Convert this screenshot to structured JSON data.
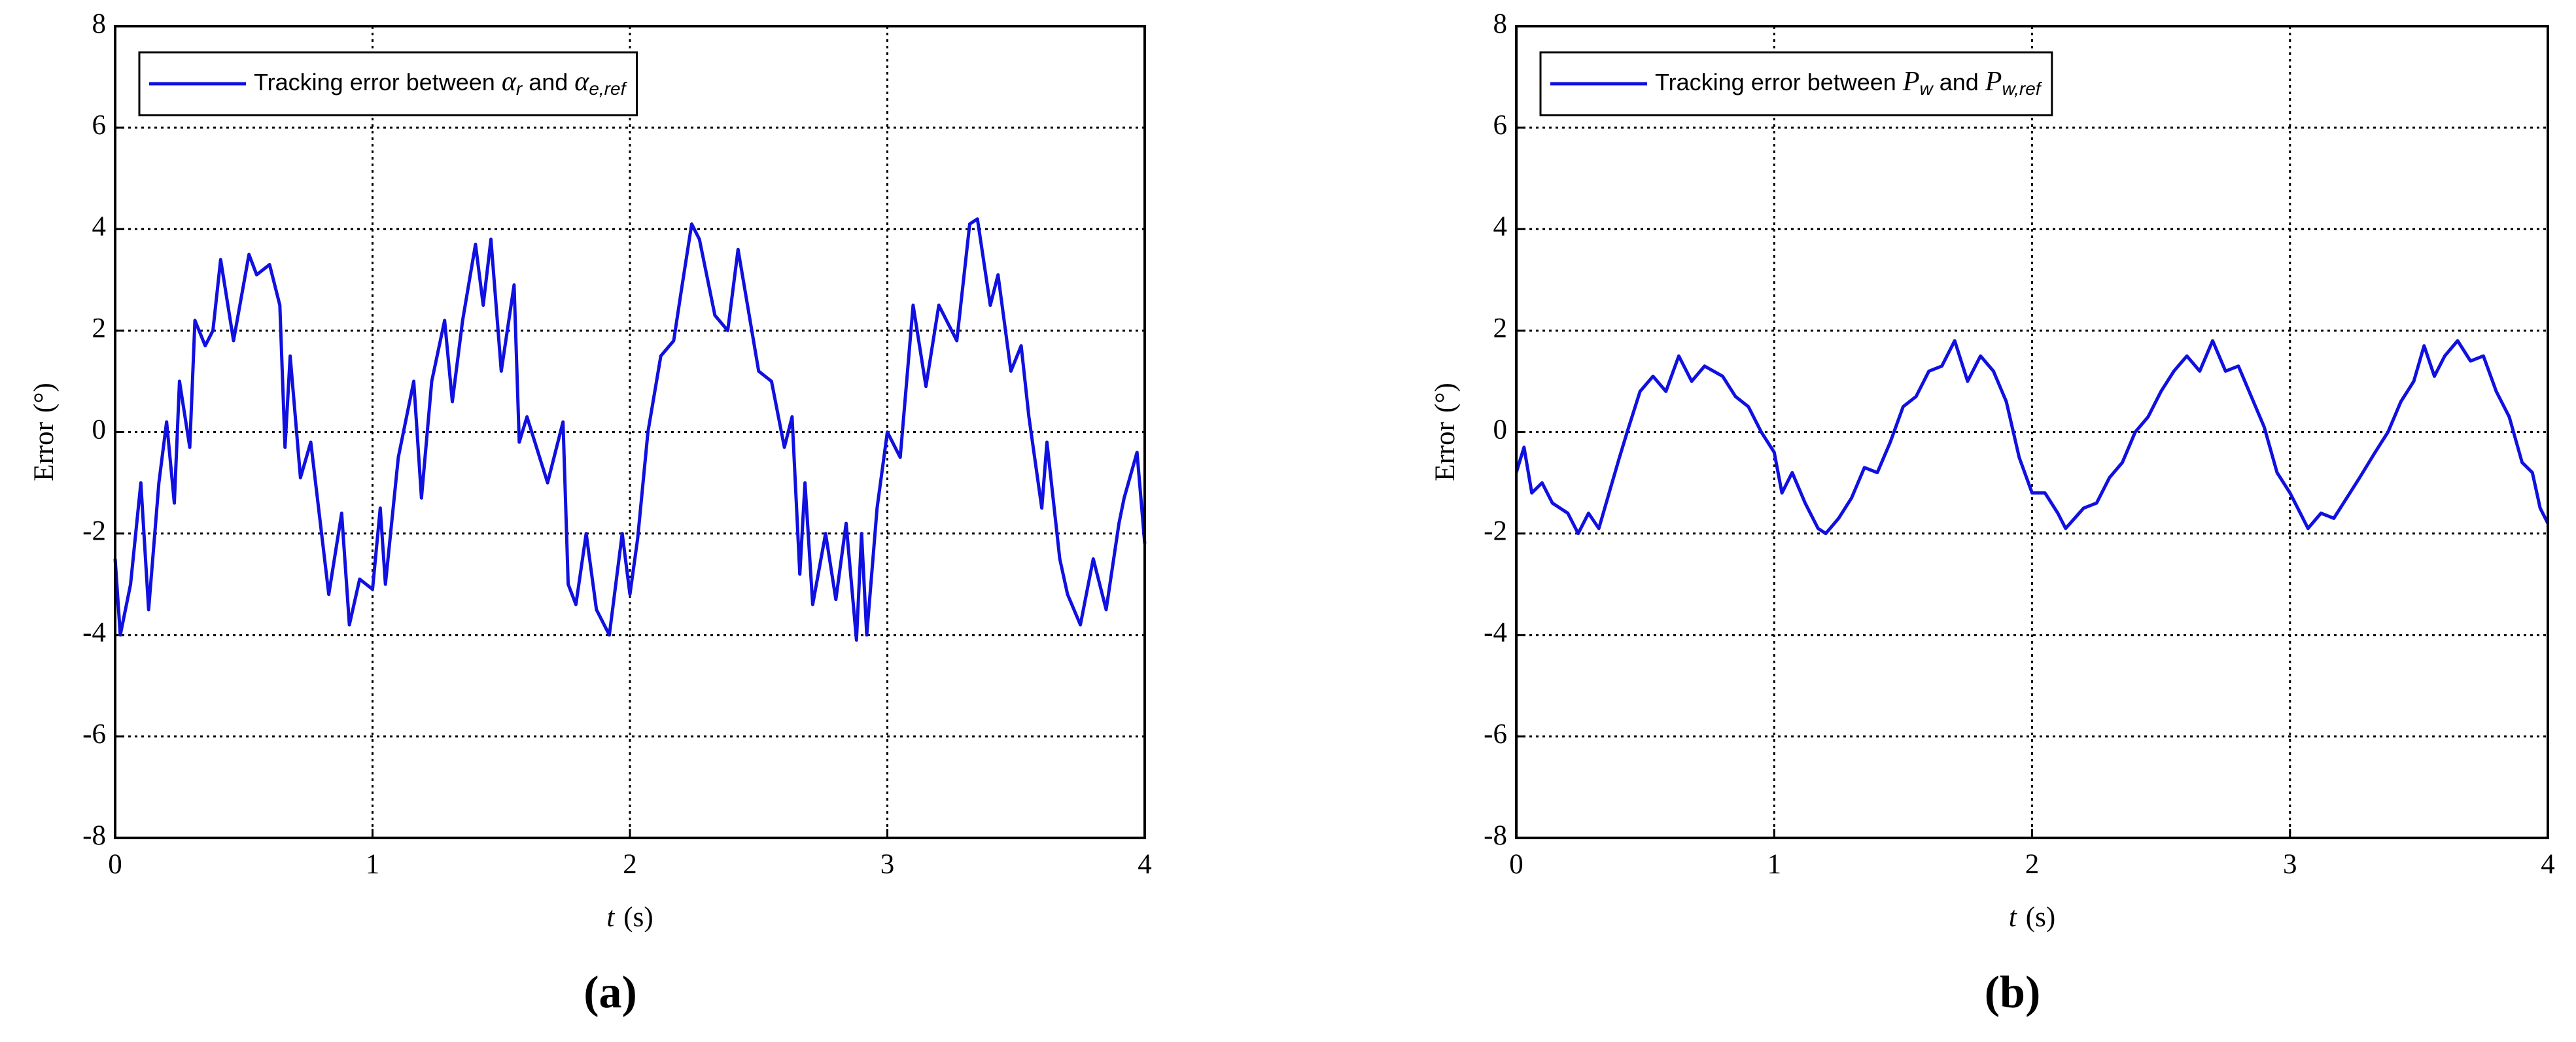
{
  "chart_data": [
    {
      "type": "line",
      "caption": "(a)",
      "ylabel": "Error",
      "ylabel_unit": "(°)",
      "xlabel": "t",
      "xlabel_unit": "(s)",
      "legend_parts": {
        "text": "Tracking error between",
        "symbol1": "α",
        "sub1": "r",
        "and": "and",
        "symbol2": "α",
        "sub2": "e,ref"
      },
      "xlim": [
        0,
        4
      ],
      "xticks": [
        0,
        1,
        2,
        3,
        4
      ],
      "ylim": [
        -8,
        8
      ],
      "yticks": [
        -8,
        -6,
        -4,
        -2,
        0,
        2,
        4,
        6,
        8
      ],
      "grid": true,
      "legend_position": "upper left",
      "series": [
        {
          "color": "#1010e0",
          "x": [
            0,
            0.02,
            0.06,
            0.1,
            0.13,
            0.17,
            0.2,
            0.23,
            0.25,
            0.29,
            0.31,
            0.35,
            0.38,
            0.41,
            0.46,
            0.52,
            0.55,
            0.6,
            0.64,
            0.66,
            0.68,
            0.72,
            0.76,
            0.83,
            0.88,
            0.91,
            0.95,
            1.0,
            1.03,
            1.05,
            1.1,
            1.16,
            1.19,
            1.23,
            1.28,
            1.31,
            1.35,
            1.4,
            1.43,
            1.46,
            1.5,
            1.55,
            1.57,
            1.6,
            1.68,
            1.74,
            1.76,
            1.79,
            1.83,
            1.87,
            1.92,
            1.97,
            2.0,
            2.03,
            2.07,
            2.12,
            2.17,
            2.2,
            2.24,
            2.27,
            2.33,
            2.38,
            2.42,
            2.5,
            2.55,
            2.6,
            2.63,
            2.66,
            2.68,
            2.71,
            2.76,
            2.8,
            2.84,
            2.88,
            2.9,
            2.92,
            2.96,
            3.0,
            3.05,
            3.1,
            3.15,
            3.2,
            3.27,
            3.32,
            3.35,
            3.4,
            3.43,
            3.48,
            3.52,
            3.55,
            3.6,
            3.62,
            3.67,
            3.7,
            3.75,
            3.8,
            3.85,
            3.9,
            3.92,
            3.97,
            4.0
          ],
          "values": [
            -2.5,
            -4,
            -3,
            -1,
            -3.5,
            -1,
            0.2,
            -1.4,
            1,
            -0.3,
            2.2,
            1.7,
            2,
            3.4,
            1.8,
            3.5,
            3.1,
            3.3,
            2.5,
            -0.3,
            1.5,
            -0.9,
            -0.2,
            -3.2,
            -1.6,
            -3.8,
            -2.9,
            -3.1,
            -1.5,
            -3,
            -0.5,
            1,
            -1.3,
            1,
            2.2,
            0.6,
            2.2,
            3.7,
            2.5,
            3.8,
            1.2,
            2.9,
            -0.2,
            0.3,
            -1,
            0.2,
            -3,
            -3.4,
            -2,
            -3.5,
            -4,
            -2,
            -3.2,
            -2.1,
            0,
            1.5,
            1.8,
            2.8,
            4.1,
            3.8,
            2.3,
            2,
            3.6,
            1.2,
            1,
            -0.3,
            0.3,
            -2.8,
            -1,
            -3.4,
            -2,
            -3.3,
            -1.8,
            -4.1,
            -2,
            -4,
            -1.5,
            0,
            -0.5,
            2.5,
            0.9,
            2.5,
            1.8,
            4.1,
            4.2,
            2.5,
            3.1,
            1.2,
            1.7,
            0.3,
            -1.5,
            -0.2,
            -2.5,
            -3.2,
            -3.8,
            -2.5,
            -3.5,
            -1.8,
            -1.3,
            -0.4,
            -2.2
          ]
        }
      ]
    },
    {
      "type": "line",
      "caption": "(b)",
      "ylabel": "Error",
      "ylabel_unit": "(°)",
      "xlabel": "t",
      "xlabel_unit": "(s)",
      "legend_parts": {
        "text": "Tracking error between",
        "symbol1": "P",
        "sub1": "w",
        "and": "and",
        "symbol2": "P",
        "sub2": "w,ref"
      },
      "xlim": [
        0,
        4
      ],
      "xticks": [
        0,
        1,
        2,
        3,
        4
      ],
      "ylim": [
        -8,
        8
      ],
      "yticks": [
        -8,
        -6,
        -4,
        -2,
        0,
        2,
        4,
        6,
        8
      ],
      "grid": true,
      "legend_position": "upper left",
      "series": [
        {
          "color": "#1010e0",
          "x": [
            0,
            0.03,
            0.06,
            0.1,
            0.14,
            0.2,
            0.24,
            0.28,
            0.32,
            0.36,
            0.4,
            0.43,
            0.48,
            0.53,
            0.58,
            0.63,
            0.68,
            0.73,
            0.8,
            0.85,
            0.9,
            0.95,
            1.0,
            1.03,
            1.07,
            1.12,
            1.17,
            1.2,
            1.25,
            1.3,
            1.35,
            1.4,
            1.45,
            1.5,
            1.55,
            1.6,
            1.65,
            1.7,
            1.75,
            1.8,
            1.85,
            1.9,
            1.95,
            2.0,
            2.05,
            2.1,
            2.13,
            2.2,
            2.25,
            2.3,
            2.35,
            2.4,
            2.45,
            2.5,
            2.55,
            2.6,
            2.65,
            2.7,
            2.75,
            2.8,
            2.85,
            2.9,
            2.95,
            3.0,
            3.03,
            3.07,
            3.12,
            3.17,
            3.22,
            3.27,
            3.33,
            3.38,
            3.43,
            3.48,
            3.52,
            3.56,
            3.6,
            3.65,
            3.7,
            3.75,
            3.8,
            3.85,
            3.9,
            3.94,
            3.97,
            4.0
          ],
          "values": [
            -0.8,
            -0.3,
            -1.2,
            -1,
            -1.4,
            -1.6,
            -2,
            -1.6,
            -1.9,
            -1.2,
            -0.5,
            0,
            0.8,
            1.1,
            0.8,
            1.5,
            1,
            1.3,
            1.1,
            0.7,
            0.5,
            0,
            -0.4,
            -1.2,
            -0.8,
            -1.4,
            -1.9,
            -2,
            -1.7,
            -1.3,
            -0.7,
            -0.8,
            -0.2,
            0.5,
            0.7,
            1.2,
            1.3,
            1.8,
            1,
            1.5,
            1.2,
            0.6,
            -0.5,
            -1.2,
            -1.2,
            -1.6,
            -1.9,
            -1.5,
            -1.4,
            -0.9,
            -0.6,
            0,
            0.3,
            0.8,
            1.2,
            1.5,
            1.2,
            1.8,
            1.2,
            1.3,
            0.7,
            0.1,
            -0.8,
            -1.2,
            -1.5,
            -1.9,
            -1.6,
            -1.7,
            -1.3,
            -0.9,
            -0.4,
            0,
            0.6,
            1,
            1.7,
            1.1,
            1.5,
            1.8,
            1.4,
            1.5,
            0.8,
            0.3,
            -0.6,
            -0.8,
            -1.5,
            -1.8
          ]
        }
      ]
    }
  ]
}
